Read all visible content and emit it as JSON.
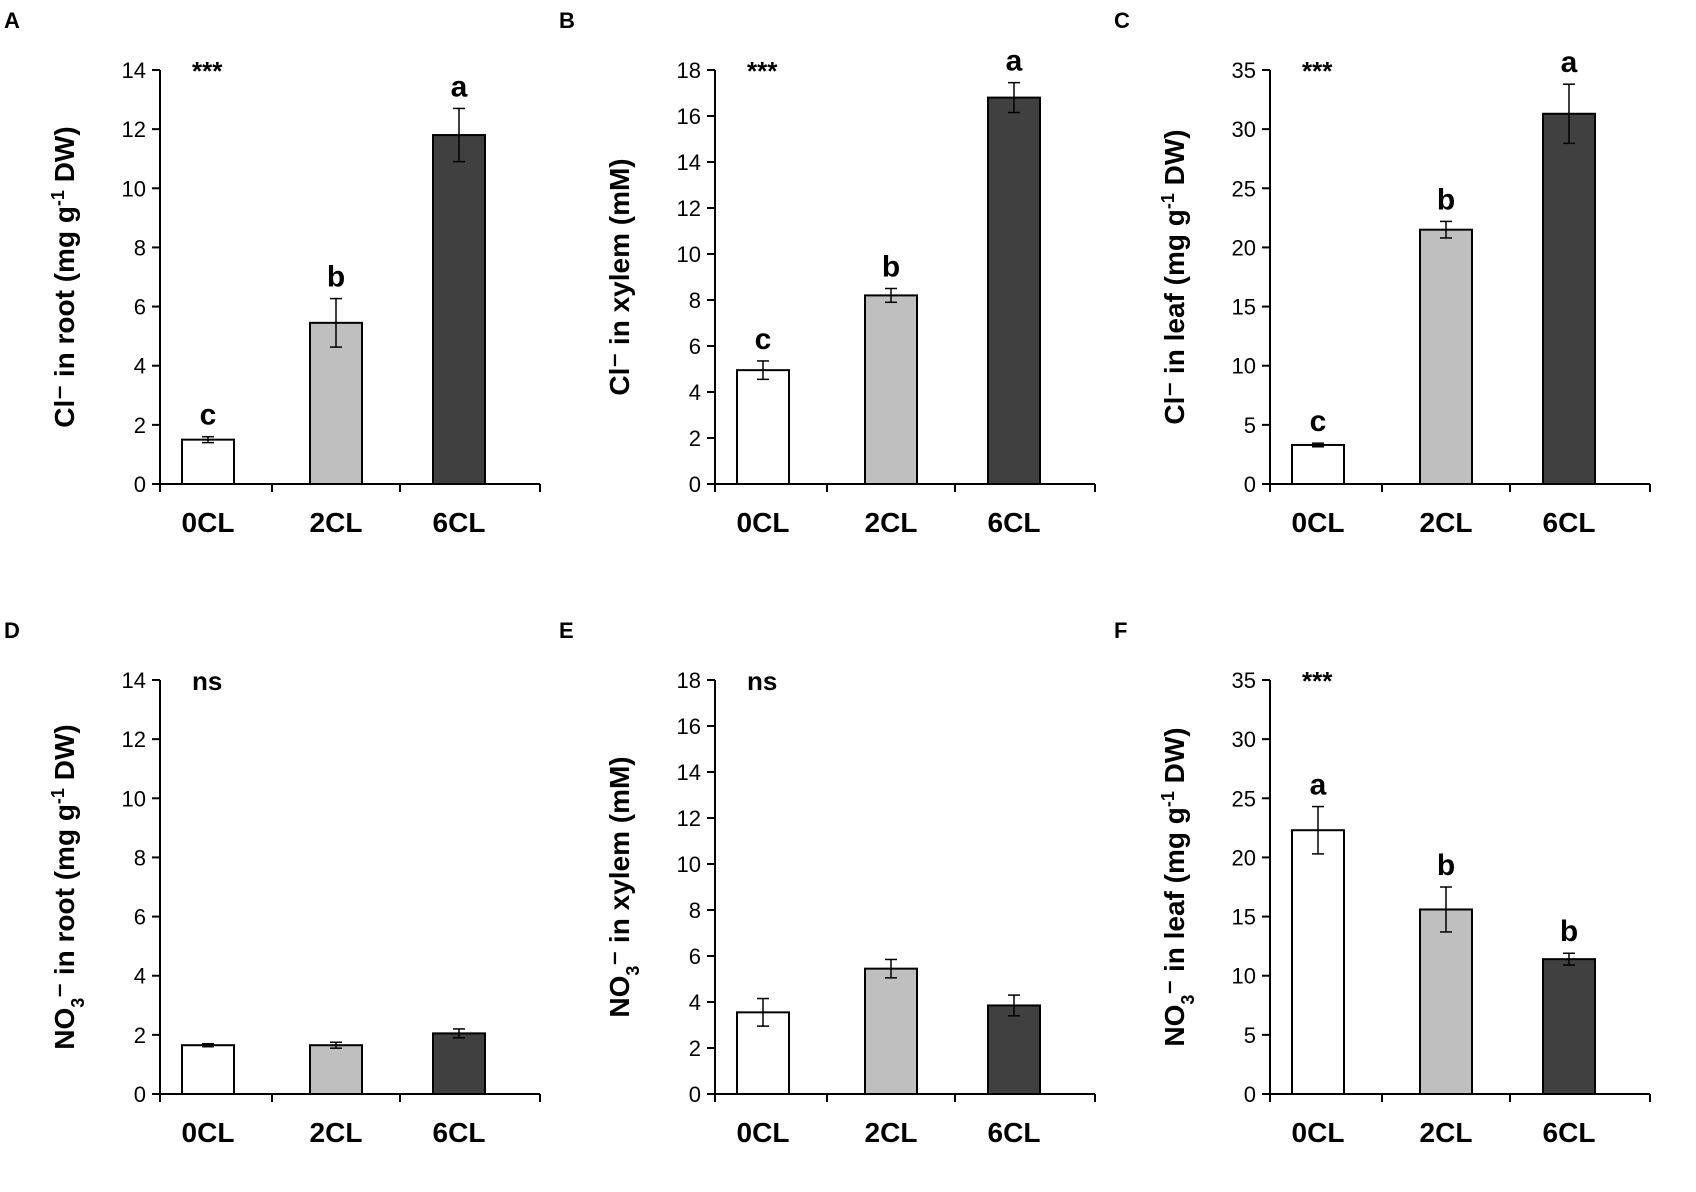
{
  "chart_data": [
    {
      "type": "bar",
      "panel_label": "A",
      "categories": [
        "0CL",
        "2CL",
        "6CL"
      ],
      "values": [
        1.5,
        5.45,
        11.8
      ],
      "errors": [
        0.1,
        0.82,
        0.9
      ],
      "bar_colors": [
        "#ffffff",
        "#bfbfbf",
        "#404040"
      ],
      "letters": [
        "c",
        "b",
        "a"
      ],
      "significance": "***",
      "ylabel_parts": [
        "Cl",
        "⁻ in root (mg g",
        "-1",
        " DW)"
      ],
      "ylim": [
        0,
        14
      ],
      "yticks": [
        0,
        2,
        4,
        6,
        8,
        10,
        12,
        14
      ]
    },
    {
      "type": "bar",
      "panel_label": "B",
      "categories": [
        "0CL",
        "2CL",
        "6CL"
      ],
      "values": [
        4.95,
        8.2,
        16.8
      ],
      "errors": [
        0.4,
        0.3,
        0.65
      ],
      "bar_colors": [
        "#ffffff",
        "#bfbfbf",
        "#404040"
      ],
      "letters": [
        "c",
        "b",
        "a"
      ],
      "significance": "***",
      "ylabel_parts": [
        "Cl",
        "⁻ in xylem (mM)"
      ],
      "ylim": [
        0,
        18
      ],
      "yticks": [
        0,
        2,
        4,
        6,
        8,
        10,
        12,
        14,
        16,
        18
      ]
    },
    {
      "type": "bar",
      "panel_label": "C",
      "categories": [
        "0CL",
        "2CL",
        "6CL"
      ],
      "values": [
        3.3,
        21.5,
        31.3
      ],
      "errors": [
        0.15,
        0.7,
        2.5
      ],
      "bar_colors": [
        "#ffffff",
        "#bfbfbf",
        "#404040"
      ],
      "letters": [
        "c",
        "b",
        "a"
      ],
      "significance": "***",
      "ylabel_parts": [
        "Cl",
        "⁻ in leaf (mg g",
        "-1",
        " DW)"
      ],
      "ylim": [
        0,
        35
      ],
      "yticks": [
        0,
        5,
        10,
        15,
        20,
        25,
        30,
        35
      ]
    },
    {
      "type": "bar",
      "panel_label": "D",
      "categories": [
        "0CL",
        "2CL",
        "6CL"
      ],
      "values": [
        1.65,
        1.65,
        2.05
      ],
      "errors": [
        0.05,
        0.1,
        0.15
      ],
      "bar_colors": [
        "#ffffff",
        "#bfbfbf",
        "#404040"
      ],
      "letters": [
        "",
        "",
        ""
      ],
      "significance": "ns",
      "ylabel_parts": [
        "NO",
        "3",
        "⁻ in root (mg g",
        "-1",
        " DW)"
      ],
      "ylim": [
        0,
        14
      ],
      "yticks": [
        0,
        2,
        4,
        6,
        8,
        10,
        12,
        14
      ]
    },
    {
      "type": "bar",
      "panel_label": "E",
      "categories": [
        "0CL",
        "2CL",
        "6CL"
      ],
      "values": [
        3.55,
        5.45,
        3.85
      ],
      "errors": [
        0.6,
        0.4,
        0.45
      ],
      "bar_colors": [
        "#ffffff",
        "#bfbfbf",
        "#404040"
      ],
      "letters": [
        "",
        "",
        ""
      ],
      "significance": "ns",
      "ylabel_parts": [
        "NO",
        "3",
        "⁻ in xylem (mM)"
      ],
      "ylim": [
        0,
        18
      ],
      "yticks": [
        0,
        2,
        4,
        6,
        8,
        10,
        12,
        14,
        16,
        18
      ]
    },
    {
      "type": "bar",
      "panel_label": "F",
      "categories": [
        "0CL",
        "2CL",
        "6CL"
      ],
      "values": [
        22.3,
        15.6,
        11.4
      ],
      "errors": [
        2.0,
        1.9,
        0.5
      ],
      "bar_colors": [
        "#ffffff",
        "#bfbfbf",
        "#404040"
      ],
      "letters": [
        "a",
        "b",
        "b"
      ],
      "significance": "***",
      "ylabel_parts": [
        "NO",
        "3",
        "⁻ in leaf (mg g",
        "-1",
        " DW)"
      ],
      "ylim": [
        0,
        35
      ],
      "yticks": [
        0,
        5,
        10,
        15,
        20,
        25,
        30,
        35
      ]
    }
  ]
}
